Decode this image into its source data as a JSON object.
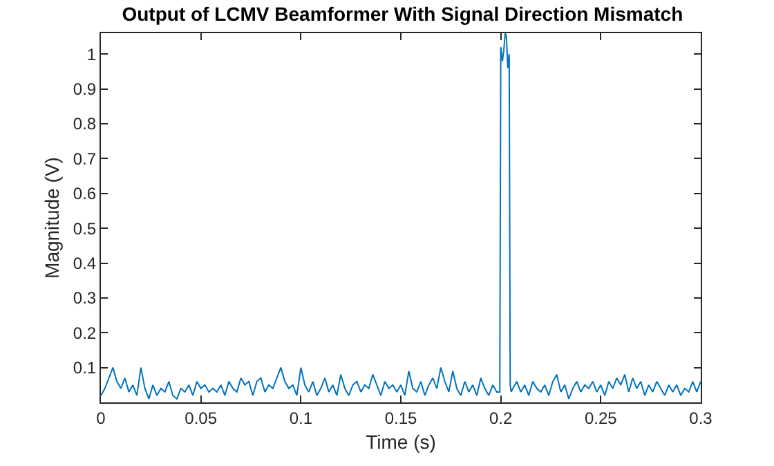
{
  "chart_data": {
    "type": "line",
    "title": "Output of LCMV Beamformer With Signal Direction Mismatch",
    "xlabel": "Time (s)",
    "ylabel": "Magnitude (V)",
    "xlim": [
      0,
      0.3
    ],
    "xticks": [
      0,
      0.05,
      0.1,
      0.15,
      0.2,
      0.25,
      0.3
    ],
    "ylim": [
      0,
      1.06
    ],
    "yticks": [
      0.1,
      0.2,
      0.3,
      0.4,
      0.5,
      0.6,
      0.7,
      0.8,
      0.9,
      1
    ],
    "marker": "none",
    "line_style": "solid",
    "series": [
      {
        "color": "#0072bd",
        "x": [
          0,
          0.002,
          0.004,
          0.006,
          0.008,
          0.01,
          0.012,
          0.014,
          0.016,
          0.018,
          0.02,
          0.022,
          0.024,
          0.026,
          0.028,
          0.03,
          0.032,
          0.034,
          0.036,
          0.038,
          0.04,
          0.042,
          0.044,
          0.046,
          0.048,
          0.05,
          0.052,
          0.054,
          0.056,
          0.058,
          0.06,
          0.062,
          0.064,
          0.066,
          0.068,
          0.07,
          0.072,
          0.074,
          0.076,
          0.078,
          0.08,
          0.082,
          0.084,
          0.086,
          0.088,
          0.09,
          0.092,
          0.094,
          0.096,
          0.098,
          0.1,
          0.102,
          0.104,
          0.106,
          0.108,
          0.11,
          0.112,
          0.114,
          0.116,
          0.118,
          0.12,
          0.122,
          0.124,
          0.126,
          0.128,
          0.13,
          0.132,
          0.134,
          0.136,
          0.138,
          0.14,
          0.142,
          0.144,
          0.146,
          0.148,
          0.15,
          0.152,
          0.154,
          0.156,
          0.158,
          0.16,
          0.162,
          0.164,
          0.166,
          0.168,
          0.17,
          0.172,
          0.174,
          0.176,
          0.178,
          0.18,
          0.182,
          0.184,
          0.186,
          0.188,
          0.19,
          0.192,
          0.194,
          0.196,
          0.198,
          0.1995,
          0.2,
          0.2008,
          0.2015,
          0.2022,
          0.2028,
          0.2035,
          0.2042,
          0.2047,
          0.2052,
          0.206,
          0.208,
          0.21,
          0.212,
          0.214,
          0.216,
          0.218,
          0.22,
          0.222,
          0.224,
          0.226,
          0.228,
          0.23,
          0.232,
          0.234,
          0.236,
          0.238,
          0.24,
          0.242,
          0.244,
          0.246,
          0.248,
          0.25,
          0.252,
          0.254,
          0.256,
          0.258,
          0.26,
          0.262,
          0.264,
          0.266,
          0.268,
          0.27,
          0.272,
          0.274,
          0.276,
          0.278,
          0.28,
          0.282,
          0.284,
          0.286,
          0.288,
          0.29,
          0.292,
          0.294,
          0.296,
          0.298,
          0.3
        ],
        "values": [
          0.02,
          0.04,
          0.07,
          0.1,
          0.06,
          0.04,
          0.07,
          0.03,
          0.05,
          0.02,
          0.1,
          0.04,
          0.01,
          0.05,
          0.02,
          0.04,
          0.03,
          0.06,
          0.02,
          0.01,
          0.04,
          0.03,
          0.05,
          0.02,
          0.06,
          0.04,
          0.05,
          0.03,
          0.04,
          0.03,
          0.05,
          0.02,
          0.06,
          0.04,
          0.03,
          0.07,
          0.05,
          0.06,
          0.02,
          0.06,
          0.07,
          0.03,
          0.05,
          0.04,
          0.07,
          0.1,
          0.06,
          0.04,
          0.05,
          0.02,
          0.1,
          0.05,
          0.03,
          0.06,
          0.02,
          0.04,
          0.07,
          0.03,
          0.05,
          0.02,
          0.08,
          0.04,
          0.02,
          0.05,
          0.06,
          0.03,
          0.05,
          0.04,
          0.08,
          0.05,
          0.02,
          0.06,
          0.04,
          0.05,
          0.03,
          0.05,
          0.02,
          0.09,
          0.04,
          0.03,
          0.06,
          0.02,
          0.05,
          0.07,
          0.04,
          0.1,
          0.06,
          0.03,
          0.09,
          0.04,
          0.02,
          0.06,
          0.03,
          0.05,
          0.02,
          0.07,
          0.04,
          0.02,
          0.05,
          0.03,
          0.03,
          1.02,
          0.98,
          1.01,
          1.06,
          1.05,
          0.96,
          1.0,
          0.05,
          0.03,
          0.04,
          0.06,
          0.03,
          0.05,
          0.02,
          0.06,
          0.04,
          0.03,
          0.05,
          0.02,
          0.06,
          0.08,
          0.03,
          0.05,
          0.01,
          0.04,
          0.06,
          0.03,
          0.05,
          0.04,
          0.06,
          0.03,
          0.05,
          0.02,
          0.06,
          0.04,
          0.07,
          0.05,
          0.08,
          0.03,
          0.07,
          0.04,
          0.06,
          0.02,
          0.05,
          0.03,
          0.06,
          0.04,
          0.02,
          0.05,
          0.03,
          0.05,
          0.02,
          0.04,
          0.03,
          0.06,
          0.03,
          0.06
        ]
      }
    ]
  }
}
